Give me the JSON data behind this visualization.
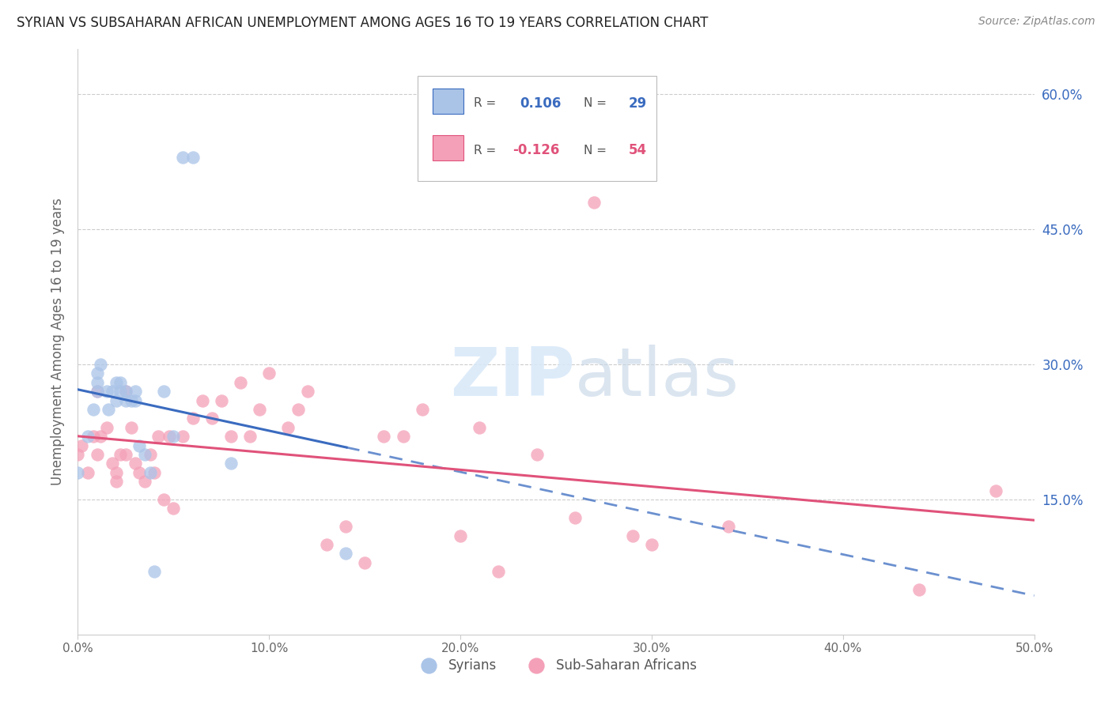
{
  "title": "SYRIAN VS SUBSAHARAN AFRICAN UNEMPLOYMENT AMONG AGES 16 TO 19 YEARS CORRELATION CHART",
  "source": "Source: ZipAtlas.com",
  "ylabel": "Unemployment Among Ages 16 to 19 years",
  "xlim": [
    0.0,
    0.5
  ],
  "ylim": [
    0.0,
    0.65
  ],
  "x_ticks": [
    0.0,
    0.1,
    0.2,
    0.3,
    0.4,
    0.5
  ],
  "x_tick_labels": [
    "0.0%",
    "10.0%",
    "20.0%",
    "30.0%",
    "40.0%",
    "50.0%"
  ],
  "y_ticks_right": [
    0.15,
    0.3,
    0.45,
    0.6
  ],
  "y_tick_labels_right": [
    "15.0%",
    "30.0%",
    "45.0%",
    "60.0%"
  ],
  "syrian_R": 0.106,
  "syrian_N": 29,
  "subsaharan_R": -0.126,
  "subsaharan_N": 54,
  "syrian_color": "#aac4e8",
  "subsaharan_color": "#f4a0b8",
  "syrian_line_color": "#3a6bbf",
  "subsaharan_line_color": "#e0527a",
  "watermark_zip": "ZIP",
  "watermark_atlas": "atlas",
  "syrian_x": [
    0.0,
    0.005,
    0.008,
    0.01,
    0.01,
    0.01,
    0.012,
    0.015,
    0.016,
    0.018,
    0.02,
    0.02,
    0.022,
    0.022,
    0.025,
    0.025,
    0.028,
    0.03,
    0.03,
    0.032,
    0.035,
    0.038,
    0.04,
    0.045,
    0.05,
    0.055,
    0.06,
    0.08,
    0.14
  ],
  "syrian_y": [
    0.18,
    0.22,
    0.25,
    0.27,
    0.28,
    0.29,
    0.3,
    0.27,
    0.25,
    0.27,
    0.26,
    0.28,
    0.27,
    0.28,
    0.27,
    0.26,
    0.26,
    0.27,
    0.26,
    0.21,
    0.2,
    0.18,
    0.07,
    0.27,
    0.22,
    0.53,
    0.53,
    0.19,
    0.09
  ],
  "subsaharan_x": [
    0.0,
    0.002,
    0.005,
    0.008,
    0.01,
    0.01,
    0.012,
    0.015,
    0.018,
    0.02,
    0.02,
    0.022,
    0.025,
    0.025,
    0.028,
    0.03,
    0.032,
    0.035,
    0.038,
    0.04,
    0.042,
    0.045,
    0.048,
    0.05,
    0.055,
    0.06,
    0.065,
    0.07,
    0.075,
    0.08,
    0.085,
    0.09,
    0.095,
    0.1,
    0.11,
    0.115,
    0.12,
    0.13,
    0.14,
    0.15,
    0.16,
    0.17,
    0.18,
    0.2,
    0.21,
    0.22,
    0.24,
    0.26,
    0.27,
    0.29,
    0.3,
    0.34,
    0.44,
    0.48
  ],
  "subsaharan_y": [
    0.2,
    0.21,
    0.18,
    0.22,
    0.2,
    0.27,
    0.22,
    0.23,
    0.19,
    0.18,
    0.17,
    0.2,
    0.2,
    0.27,
    0.23,
    0.19,
    0.18,
    0.17,
    0.2,
    0.18,
    0.22,
    0.15,
    0.22,
    0.14,
    0.22,
    0.24,
    0.26,
    0.24,
    0.26,
    0.22,
    0.28,
    0.22,
    0.25,
    0.29,
    0.23,
    0.25,
    0.27,
    0.1,
    0.12,
    0.08,
    0.22,
    0.22,
    0.25,
    0.11,
    0.23,
    0.07,
    0.2,
    0.13,
    0.48,
    0.11,
    0.1,
    0.12,
    0.05,
    0.16
  ],
  "legend_syrian_label": "Syrians",
  "legend_subsaharan_label": "Sub-Saharan Africans",
  "background_color": "#ffffff"
}
